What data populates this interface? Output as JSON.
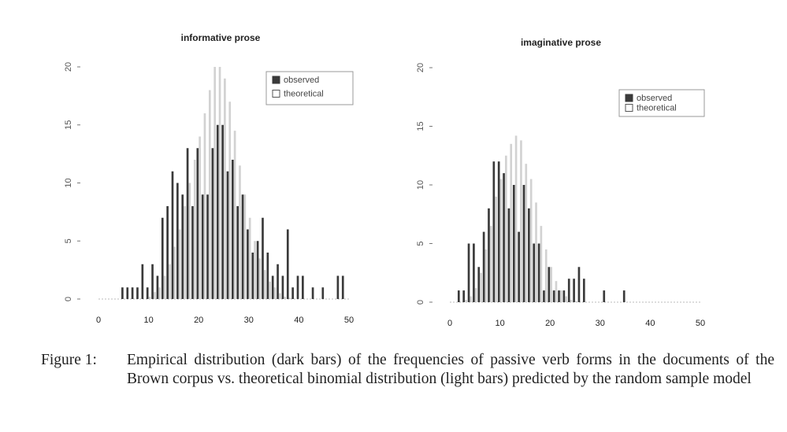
{
  "chart_data": [
    {
      "type": "bar",
      "title": "informative prose",
      "xlabel": "",
      "ylabel": "",
      "xlim": [
        0,
        50
      ],
      "ylim": [
        0,
        20
      ],
      "xticks": [
        0,
        10,
        20,
        30,
        40,
        50
      ],
      "yticks": [
        0,
        5,
        10,
        15,
        20
      ],
      "legend": {
        "position": "top-right",
        "entries": [
          "observed",
          "theoretical"
        ]
      },
      "grid": false,
      "series": [
        {
          "name": "observed",
          "color": "#3a3a3a",
          "x": [
            5,
            6,
            7,
            8,
            9,
            10,
            11,
            12,
            13,
            14,
            15,
            16,
            17,
            18,
            19,
            20,
            21,
            22,
            23,
            24,
            25,
            26,
            27,
            28,
            29,
            30,
            31,
            32,
            33,
            34,
            35,
            36,
            37,
            38,
            39,
            40,
            41,
            42,
            43,
            44,
            45,
            46,
            47,
            48,
            49
          ],
          "values": [
            1,
            1,
            1,
            1,
            3,
            1,
            3,
            2,
            7,
            8,
            11,
            10,
            9,
            13,
            8,
            13,
            9,
            9,
            13,
            15,
            15,
            11,
            12,
            8,
            9,
            6,
            4,
            5,
            7,
            4,
            2,
            3,
            2,
            6,
            1,
            2,
            2,
            0,
            1,
            0,
            1,
            0,
            0,
            2,
            2
          ]
        },
        {
          "name": "theoretical",
          "color": "#d2d2d2",
          "x": [
            0,
            1,
            2,
            3,
            4,
            5,
            6,
            7,
            8,
            9,
            10,
            11,
            12,
            13,
            14,
            15,
            16,
            17,
            18,
            19,
            20,
            21,
            22,
            23,
            24,
            25,
            26,
            27,
            28,
            29,
            30,
            31,
            32,
            33,
            34,
            35,
            36,
            37,
            38,
            39,
            40,
            41,
            42,
            43,
            44,
            45,
            46,
            47,
            48,
            49,
            50
          ],
          "values": [
            0,
            0,
            0,
            0,
            0,
            0,
            0,
            0,
            0,
            0,
            0.2,
            0.6,
            1,
            2,
            3,
            4.5,
            6,
            8,
            10,
            12,
            14,
            16,
            18,
            20,
            20,
            19,
            17,
            14.5,
            11.5,
            9,
            7,
            5,
            3.5,
            2.5,
            1.5,
            1,
            0.5,
            0.2,
            0.1,
            0,
            0,
            0,
            0,
            0,
            0,
            0,
            0,
            0,
            0,
            0,
            0
          ]
        }
      ]
    },
    {
      "type": "bar",
      "title": "imaginative prose",
      "xlabel": "",
      "ylabel": "",
      "xlim": [
        0,
        50
      ],
      "ylim": [
        0,
        20
      ],
      "xticks": [
        0,
        10,
        20,
        30,
        40,
        50
      ],
      "yticks": [
        0,
        5,
        10,
        15,
        20
      ],
      "ytick_labels": [
        "0",
        "5",
        "10",
        "15",
        "20"
      ],
      "legend": {
        "position": "top-right",
        "entries": [
          "observed",
          "theoretical"
        ]
      },
      "grid": false,
      "series": [
        {
          "name": "observed",
          "color": "#3a3a3a",
          "x": [
            2,
            3,
            4,
            5,
            6,
            7,
            8,
            9,
            10,
            11,
            12,
            13,
            14,
            15,
            16,
            17,
            18,
            19,
            20,
            21,
            22,
            23,
            24,
            25,
            26,
            27,
            31,
            35
          ],
          "values": [
            1,
            1,
            5,
            5,
            3,
            6,
            8,
            12,
            12,
            11,
            8,
            10,
            6,
            10,
            8,
            5,
            5,
            1,
            3,
            1,
            1,
            1,
            2,
            2,
            3,
            2,
            1,
            1
          ]
        },
        {
          "name": "theoretical",
          "color": "#d2d2d2",
          "x": [
            0,
            1,
            2,
            3,
            4,
            5,
            6,
            7,
            8,
            9,
            10,
            11,
            12,
            13,
            14,
            15,
            16,
            17,
            18,
            19,
            20,
            21,
            22,
            23,
            24,
            25,
            26,
            27,
            28,
            29,
            30,
            31,
            32,
            33,
            34,
            35,
            36,
            37,
            38,
            39,
            40,
            41,
            42,
            43,
            44,
            45,
            46,
            47,
            48,
            49,
            50
          ],
          "values": [
            0,
            0,
            0,
            0.2,
            0.5,
            1.2,
            2.5,
            4.5,
            6.5,
            9,
            10.5,
            12.5,
            13.5,
            14.2,
            13.8,
            11.8,
            10.5,
            8.5,
            6.5,
            4.5,
            3,
            1.8,
            1,
            0.5,
            0.2,
            0.1,
            0,
            0,
            0,
            0,
            0,
            0,
            0,
            0,
            0,
            0,
            0,
            0,
            0,
            0,
            0,
            0,
            0,
            0,
            0,
            0,
            0,
            0,
            0,
            0,
            0
          ]
        }
      ]
    }
  ],
  "caption": {
    "label": "Figure 1:",
    "text": "Empirical distribution (dark bars) of the frequencies of passive verb forms in the documents of the Brown corpus vs. theoretical binomial distribution (light bars) predicted by the random sample model"
  }
}
